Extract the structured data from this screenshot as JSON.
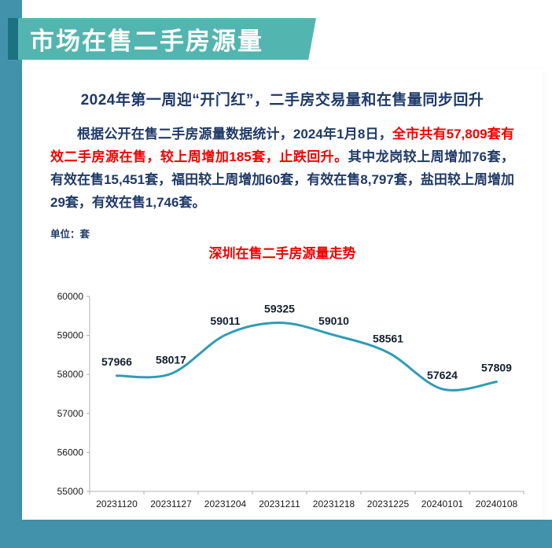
{
  "colors": {
    "strip_teal": "#4392ab",
    "banner_teal": "#53b5af",
    "banner_accent": "#1d7183",
    "navy": "#1f3a68",
    "red": "#f40000",
    "line_teal": "#2f9cb4",
    "label_dark": "#141e30",
    "tick_text": "#1a1a1a",
    "axis_gray": "#b0b0b0"
  },
  "banner": {
    "title": "市场在售二手房源量"
  },
  "card": {
    "headline": "2024年第一周迎“开门红”，二手房交易量和在售量同步回升",
    "paragraph": {
      "part1": "根据公开在售二手房源量数据统计，2024年1月8日，",
      "part2": "全市共有57,809套有效二手房源在售，较上周增加185套，止跌回升。",
      "part3": "其中龙岗较上周增加76套，有效在售15,451套，福田较上周增加60套，有效在售8,797套，盐田较上周增加29套，有效在售1,746套。"
    }
  },
  "chart": {
    "unit_label": "单位：套",
    "title": "深圳在售二手房源量走势"
  },
  "chart_data": {
    "type": "line",
    "title": "深圳在售二手房源量走势",
    "categories": [
      "20231120",
      "20231127",
      "20231204",
      "20231211",
      "20231218",
      "20231225",
      "20240101",
      "20240108"
    ],
    "values": [
      57966,
      58017,
      59011,
      59325,
      59010,
      58561,
      57624,
      57809
    ],
    "xlabel": "",
    "ylabel": "单位：套",
    "ylim": [
      55000,
      60000
    ],
    "ytick_step": 1000,
    "grid": false,
    "legend": false,
    "data_labels": true,
    "line_color": "#2f9cb4"
  }
}
